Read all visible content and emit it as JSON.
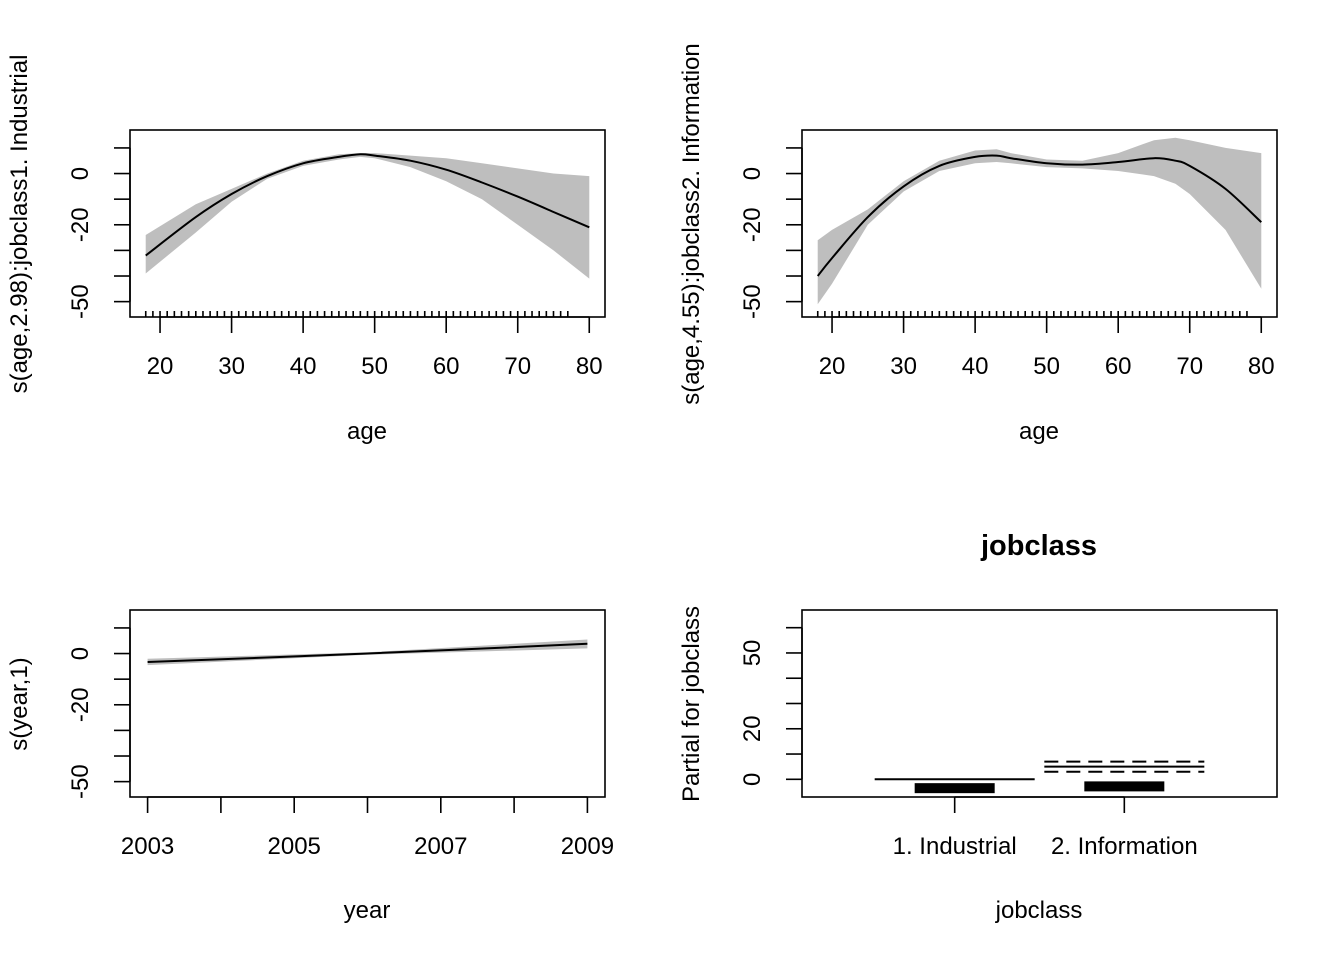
{
  "chart_data": [
    {
      "type": "line",
      "panel": "top-left",
      "title": "",
      "xlabel": "age",
      "ylabel": "s(age,2.98):jobclass1. Industrial",
      "xlim": [
        15.8,
        82.2
      ],
      "ylim": [
        -56,
        17
      ],
      "xticks": [
        20,
        30,
        40,
        50,
        60,
        70,
        80
      ],
      "xtick_labels": [
        "20",
        "30",
        "40",
        "50",
        "60",
        "70",
        "80"
      ],
      "yticks": [
        10,
        0,
        -10,
        -20,
        -30,
        -40,
        -50
      ],
      "ytick_labels": [
        "",
        "0",
        "",
        "-20",
        "",
        "",
        "-50"
      ],
      "x": [
        18,
        25,
        30,
        35,
        40,
        45,
        48,
        50,
        55,
        60,
        65,
        70,
        75,
        80
      ],
      "fit": [
        -32,
        -17,
        -8,
        -1,
        4,
        6.5,
        7.5,
        7,
        5,
        1.5,
        -3.5,
        -9,
        -15,
        -21
      ],
      "upper": [
        -24,
        -12,
        -6,
        0,
        5,
        7.5,
        8,
        8,
        7,
        6,
        4,
        2,
        0,
        -1
      ],
      "lower": [
        -39,
        -23,
        -11,
        -2,
        3,
        5.5,
        6.5,
        6,
        2.5,
        -3,
        -10,
        -20,
        -30,
        -41
      ],
      "rug_x": [
        18,
        19,
        20,
        21,
        22,
        23,
        24,
        25,
        26,
        27,
        28,
        29,
        30,
        31,
        32,
        33,
        34,
        35,
        36,
        37,
        38,
        39,
        40,
        41,
        42,
        43,
        44,
        45,
        46,
        47,
        48,
        49,
        50,
        51,
        52,
        53,
        54,
        55,
        56,
        57,
        58,
        59,
        60,
        61,
        62,
        63,
        64,
        65,
        66,
        67,
        68,
        69,
        70,
        71,
        72,
        73,
        74,
        75,
        76,
        77
      ]
    },
    {
      "type": "line",
      "panel": "top-right",
      "title": "",
      "xlabel": "age",
      "ylabel": "s(age,4.55):jobclass2. Information",
      "xlim": [
        15.8,
        82.2
      ],
      "ylim": [
        -56,
        17
      ],
      "xticks": [
        20,
        30,
        40,
        50,
        60,
        70,
        80
      ],
      "xtick_labels": [
        "20",
        "30",
        "40",
        "50",
        "60",
        "70",
        "80"
      ],
      "yticks": [
        10,
        0,
        -10,
        -20,
        -30,
        -40,
        -50
      ],
      "ytick_labels": [
        "",
        "0",
        "",
        "-20",
        "",
        "",
        "-50"
      ],
      "x": [
        18,
        20,
        25,
        30,
        35,
        40,
        43,
        45,
        50,
        55,
        60,
        65,
        68,
        70,
        75,
        80
      ],
      "fit": [
        -40,
        -33,
        -17,
        -5,
        3,
        6.5,
        7,
        6,
        4,
        3.5,
        4.5,
        6,
        5,
        3,
        -6,
        -19
      ],
      "upper": [
        -26,
        -22,
        -14,
        -3,
        5,
        9,
        9.5,
        8,
        5.5,
        5,
        8,
        13,
        14,
        13,
        10,
        8
      ],
      "lower": [
        -51,
        -43,
        -20,
        -7,
        1,
        4,
        4.5,
        4,
        2.5,
        2,
        1,
        -1,
        -4,
        -8,
        -22,
        -45
      ],
      "rug_x": [
        18,
        19,
        20,
        21,
        22,
        23,
        24,
        25,
        26,
        27,
        28,
        29,
        30,
        31,
        32,
        33,
        34,
        35,
        36,
        37,
        38,
        39,
        40,
        41,
        42,
        43,
        44,
        45,
        46,
        47,
        48,
        49,
        50,
        51,
        52,
        53,
        54,
        55,
        56,
        57,
        58,
        59,
        60,
        61,
        62,
        63,
        64,
        65,
        66,
        67,
        68,
        69,
        70,
        71,
        72,
        73,
        74,
        75,
        76,
        77,
        78
      ]
    },
    {
      "type": "line",
      "panel": "bottom-left",
      "title": "",
      "xlabel": "year",
      "ylabel": "s(year,1)",
      "xlim": [
        2002.76,
        2009.24
      ],
      "ylim": [
        -56,
        17
      ],
      "xticks": [
        2003,
        2004,
        2005,
        2006,
        2007,
        2008,
        2009
      ],
      "xtick_labels": [
        "2003",
        "",
        "2005",
        "",
        "2007",
        "",
        "2009"
      ],
      "yticks": [
        10,
        0,
        -10,
        -20,
        -30,
        -40,
        -50
      ],
      "ytick_labels": [
        "",
        "0",
        "",
        "-20",
        "",
        "",
        "-50"
      ],
      "x": [
        2003,
        2006,
        2009
      ],
      "fit": [
        -3.3,
        0,
        3.8
      ],
      "upper": [
        -2,
        0.5,
        5.5
      ],
      "lower": [
        -4.5,
        -0.5,
        2
      ]
    },
    {
      "type": "bar",
      "panel": "bottom-right",
      "title": "jobclass",
      "xlabel": "jobclass",
      "ylabel": "Partial for jobclass",
      "categories": [
        "1. Industrial",
        "2. Information"
      ],
      "ylim": [
        -7,
        67
      ],
      "yticks": [
        60,
        50,
        40,
        30,
        20,
        10,
        0
      ],
      "ytick_labels": [
        "",
        "50",
        "",
        "",
        "20",
        "",
        "0"
      ],
      "values": [
        0,
        5
      ],
      "upper": [
        0,
        7
      ],
      "lower": [
        0,
        3
      ],
      "rug": [
        -3.5,
        -2.8
      ]
    }
  ]
}
